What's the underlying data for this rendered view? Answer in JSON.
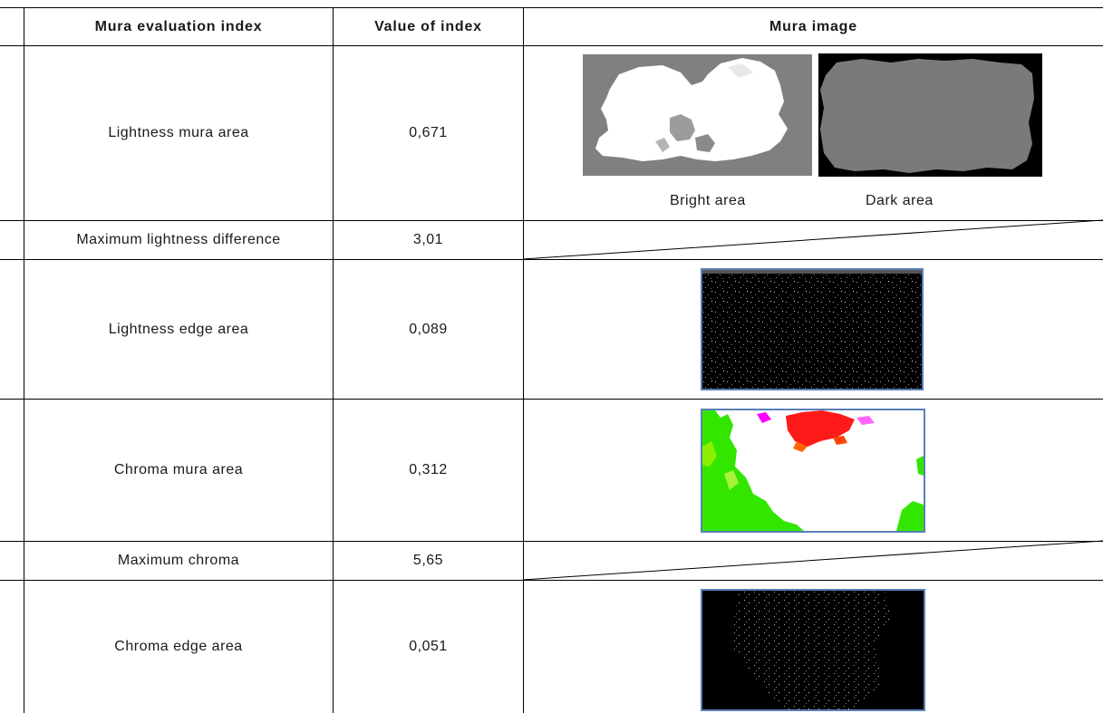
{
  "table": {
    "headers": {
      "index": "Mura evaluation index",
      "value": "Value of index",
      "image": "Mura image"
    },
    "rows": [
      {
        "label": "Lightness mura area",
        "value": "0,671"
      },
      {
        "label": "Maximum lightness difference",
        "value": "3,01"
      },
      {
        "label": "Lightness edge area",
        "value": "0,089"
      },
      {
        "label": "Chroma mura area",
        "value": "0,312"
      },
      {
        "label": "Maximum chroma",
        "value": "5,65"
      },
      {
        "label": "Chroma edge area",
        "value": "0,051"
      }
    ],
    "captions": {
      "bright": "Bright area",
      "dark": "Dark area"
    }
  },
  "colors": {
    "grid": "#000000",
    "image_border": "#5b7fb8",
    "mura_gray": "#808080",
    "chroma_red": "#ff1a1a",
    "chroma_green": "#33e600",
    "chroma_magenta": "#ff00ff"
  }
}
